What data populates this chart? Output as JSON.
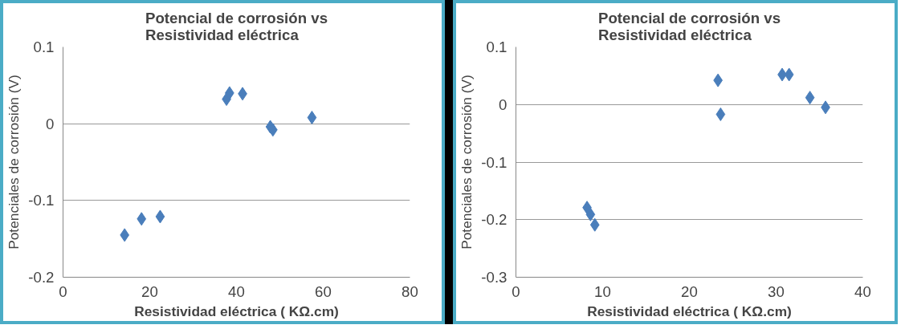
{
  "chart_data": [
    {
      "type": "scatter",
      "title": "Potencial de corrosión vs\nResistividad eléctrica",
      "xlabel": "Resistividad eléctrica ( KΩ.cm)",
      "ylabel": "Potenciales de corrosión (V)",
      "xlim": [
        0,
        80
      ],
      "xticks": [
        0,
        20,
        40,
        60,
        80
      ],
      "ylim": [
        -0.2,
        0.1
      ],
      "yticks": [
        -0.2,
        -0.1,
        0,
        0.1
      ],
      "grid": "y",
      "marker": "diamond",
      "series": [
        {
          "color": "#4a7ebb",
          "x": [
            14.2,
            18.1,
            22.4,
            37.7,
            38.4,
            41.4,
            47.8,
            48.4,
            57.4
          ],
          "values": [
            -0.145,
            -0.124,
            -0.121,
            0.032,
            0.04,
            0.039,
            -0.004,
            -0.008,
            0.008
          ]
        }
      ]
    },
    {
      "type": "scatter",
      "title": "Potencial de corrosión vs\nResistividad eléctrica",
      "xlabel": "Resistividad eléctrica ( KΩ.cm)",
      "ylabel": "Potenciales de corrosión (V)",
      "xlim": [
        0,
        40
      ],
      "xticks": [
        0,
        10,
        20,
        30,
        40
      ],
      "ylim": [
        -0.3,
        0.1
      ],
      "yticks": [
        -0.3,
        -0.2,
        -0.1,
        0,
        0.1
      ],
      "grid": "y",
      "marker": "diamond",
      "series": [
        {
          "color": "#4a7ebb",
          "x": [
            8.2,
            8.6,
            9.1,
            23.3,
            23.6,
            30.7,
            31.5,
            33.9,
            35.7
          ],
          "values": [
            -0.179,
            -0.191,
            -0.209,
            0.042,
            -0.017,
            0.052,
            0.052,
            0.012,
            -0.005
          ]
        }
      ]
    }
  ]
}
